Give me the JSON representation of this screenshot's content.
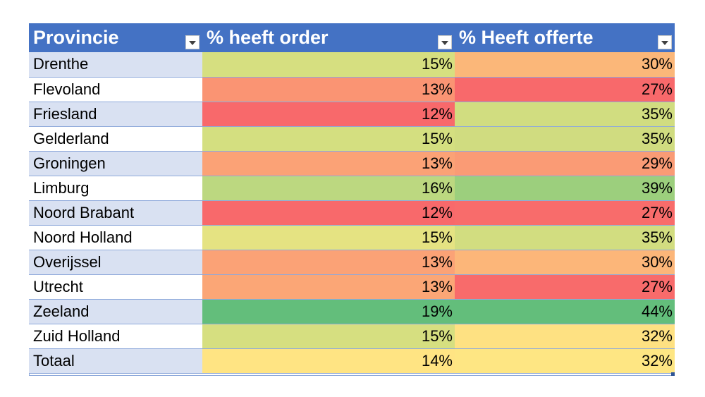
{
  "header": {
    "col1": "Provincie",
    "col2": "% heeft order",
    "col3": "% Heeft offerte"
  },
  "rows": [
    {
      "provincie": "Drenthe",
      "order": "15%",
      "offerte": "30%",
      "order_color": "#d6df80",
      "offerte_color": "#fbb779"
    },
    {
      "provincie": "Flevoland",
      "order": "13%",
      "offerte": "27%",
      "order_color": "#fa9473",
      "offerte_color": "#f8696b"
    },
    {
      "provincie": "Friesland",
      "order": "12%",
      "offerte": "35%",
      "order_color": "#f8696b",
      "offerte_color": "#d1dd80"
    },
    {
      "provincie": "Gelderland",
      "order": "15%",
      "offerte": "35%",
      "order_color": "#d4df80",
      "offerte_color": "#d0dc80"
    },
    {
      "provincie": "Groningen",
      "order": "13%",
      "offerte": "29%",
      "order_color": "#fba276",
      "offerte_color": "#fa9b75"
    },
    {
      "provincie": "Limburg",
      "order": "16%",
      "offerte": "39%",
      "order_color": "#bcd880",
      "offerte_color": "#9ccf7d"
    },
    {
      "provincie": "Noord Brabant",
      "order": "12%",
      "offerte": "27%",
      "order_color": "#f8696b",
      "offerte_color": "#f86c6b"
    },
    {
      "provincie": "Noord Holland",
      "order": "15%",
      "offerte": "35%",
      "order_color": "#e5e382",
      "offerte_color": "#d2dd80"
    },
    {
      "provincie": "Overijssel",
      "order": "13%",
      "offerte": "30%",
      "order_color": "#fba276",
      "offerte_color": "#fcb679"
    },
    {
      "provincie": "Utrecht",
      "order": "13%",
      "offerte": "27%",
      "order_color": "#fba676",
      "offerte_color": "#f86b6b"
    },
    {
      "provincie": "Zeeland",
      "order": "19%",
      "offerte": "44%",
      "order_color": "#63be7b",
      "offerte_color": "#63be7b"
    },
    {
      "provincie": "Zuid Holland",
      "order": "15%",
      "offerte": "32%",
      "order_color": "#d6df80",
      "offerte_color": "#fee182"
    },
    {
      "provincie": "Totaal",
      "order": "14%",
      "offerte": "32%",
      "order_color": "#ffe483",
      "offerte_color": "#fee683"
    }
  ]
}
